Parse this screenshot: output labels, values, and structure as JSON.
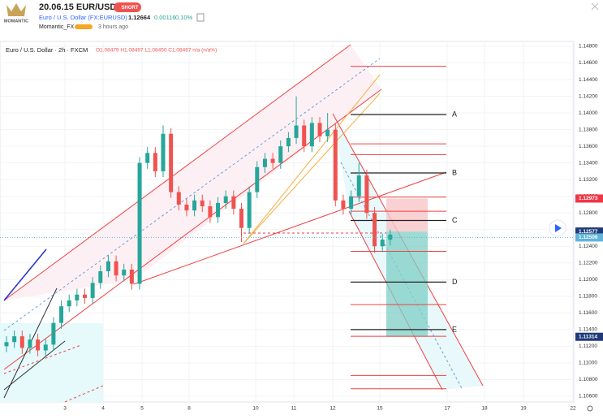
{
  "header": {
    "logo": "MOMANTIC",
    "title": "20.06.15 EUR/USD",
    "badge": "SHORT",
    "symbol": "Euro / U.S. Dollar (FX:EURUSD)",
    "price": "1.12664",
    "change": "0.00116",
    "change_pct": "0.10%",
    "author": "Momantic_FX",
    "time": "3 hours ago"
  },
  "chart": {
    "type": "candlestick",
    "title": "Euro / U.S. Dollar · 2h · FXCM",
    "ohlc": "O1.08479 H1.08497 L1.08450 C1.08467 n/a (n/a%)",
    "up_color": "#26a69a",
    "down_color": "#ef5350",
    "ylim": [
      1.106,
      1.148
    ],
    "yticks": [
      {
        "value": 1.148,
        "label": "1.14800"
      },
      {
        "value": 1.146,
        "label": "1.14600"
      },
      {
        "value": 1.144,
        "label": "1.14400"
      },
      {
        "value": 1.142,
        "label": "1.14200"
      },
      {
        "value": 1.14,
        "label": "1.14000"
      },
      {
        "value": 1.138,
        "label": "1.13800"
      },
      {
        "value": 1.136,
        "label": "1.13600"
      },
      {
        "value": 1.134,
        "label": "1.13400"
      },
      {
        "value": 1.132,
        "label": "1.13200"
      },
      {
        "value": 1.13,
        "label": "1.13000"
      },
      {
        "value": 1.128,
        "label": "1.12800"
      },
      {
        "value": 1.126,
        "label": "1.12600"
      },
      {
        "value": 1.124,
        "label": "1.12400"
      },
      {
        "value": 1.122,
        "label": "1.12200"
      },
      {
        "value": 1.12,
        "label": "1.12000"
      },
      {
        "value": 1.118,
        "label": "1.11800"
      },
      {
        "value": 1.116,
        "label": "1.11600"
      },
      {
        "value": 1.114,
        "label": "1.11400"
      },
      {
        "value": 1.112,
        "label": "1.11200"
      },
      {
        "value": 1.11,
        "label": "1.11000"
      },
      {
        "value": 1.108,
        "label": "1.10800"
      },
      {
        "value": 1.106,
        "label": "1.10600"
      }
    ],
    "x_labels": [
      "3",
      "4",
      "5",
      "8",
      "10",
      "11",
      "12",
      "15",
      "17",
      "18",
      "19",
      "22"
    ],
    "open": [
      1.112,
      1.1125,
      1.1132,
      1.1118,
      1.1128,
      1.1115,
      1.1122,
      1.1148,
      1.1168,
      1.1175,
      1.1182,
      1.1178,
      1.1196,
      1.121,
      1.1222,
      1.1205,
      1.1212,
      1.1195,
      1.134,
      1.1352,
      1.133,
      1.1375,
      1.1305,
      1.129,
      1.1283,
      1.1295,
      1.1288,
      1.1275,
      1.1292,
      1.13,
      1.1285,
      1.1262,
      1.1305,
      1.1335,
      1.1345,
      1.134,
      1.136,
      1.137,
      1.1385,
      1.136,
      1.1388,
      1.1372,
      1.138,
      1.1295,
      1.1285,
      1.13,
      1.1325,
      1.128,
      1.124,
      1.1248
    ],
    "high": [
      1.1132,
      1.1139,
      1.1139,
      1.1135,
      1.1135,
      1.1129,
      1.1155,
      1.1175,
      1.1182,
      1.1189,
      1.1189,
      1.1203,
      1.1217,
      1.1229,
      1.1229,
      1.1219,
      1.1219,
      1.1347,
      1.1359,
      1.1359,
      1.1385,
      1.1382,
      1.1312,
      1.1297,
      1.1302,
      1.1302,
      1.1295,
      1.1299,
      1.1307,
      1.1307,
      1.1292,
      1.1312,
      1.1342,
      1.1352,
      1.1352,
      1.1367,
      1.1377,
      1.142,
      1.1392,
      1.1395,
      1.1395,
      1.14,
      1.1387,
      1.1302,
      1.1307,
      1.134,
      1.1332,
      1.1287,
      1.1255,
      1.126
    ],
    "low": [
      1.1113,
      1.1118,
      1.1111,
      1.1111,
      1.1108,
      1.1108,
      1.1115,
      1.1141,
      1.1161,
      1.1168,
      1.1171,
      1.1171,
      1.1189,
      1.1203,
      1.1198,
      1.1198,
      1.1188,
      1.1188,
      1.1333,
      1.1323,
      1.1323,
      1.1298,
      1.1283,
      1.1276,
      1.1276,
      1.1281,
      1.1268,
      1.1268,
      1.1285,
      1.1278,
      1.1245,
      1.1255,
      1.1298,
      1.1328,
      1.1333,
      1.1333,
      1.1353,
      1.1363,
      1.1353,
      1.1353,
      1.1365,
      1.1365,
      1.1288,
      1.1278,
      1.1278,
      1.1293,
      1.1273,
      1.1232,
      1.1233,
      1.1241
    ],
    "close": [
      1.1125,
      1.1132,
      1.1118,
      1.1128,
      1.1115,
      1.1122,
      1.1148,
      1.1168,
      1.1175,
      1.1182,
      1.1178,
      1.1196,
      1.121,
      1.1222,
      1.1205,
      1.1212,
      1.1195,
      1.134,
      1.1352,
      1.133,
      1.1375,
      1.1305,
      1.129,
      1.1283,
      1.1295,
      1.1288,
      1.1275,
      1.1292,
      1.13,
      1.1285,
      1.1262,
      1.1305,
      1.1335,
      1.1345,
      1.134,
      1.136,
      1.137,
      1.1385,
      1.136,
      1.1388,
      1.1372,
      1.138,
      1.1295,
      1.1285,
      1.13,
      1.1325,
      1.128,
      1.124,
      1.1248,
      1.1254
    ],
    "levels": [
      {
        "label": "A",
        "value": 1.1398,
        "color": "#222222"
      },
      {
        "label": "B",
        "value": 1.1328,
        "color": "#222222"
      },
      {
        "label": "C",
        "value": 1.1271,
        "color": "#222222"
      },
      {
        "label": "D",
        "value": 1.1197,
        "color": "#222222"
      },
      {
        "label": "E",
        "value": 1.114,
        "color": "#222222"
      }
    ],
    "red_levels": [
      1.1456,
      1.1363,
      1.135,
      1.1299,
      1.1282,
      1.1234,
      1.117,
      1.1132,
      1.1085,
      1.1069
    ],
    "price_tags": [
      {
        "value": 1.12973,
        "color": "#f23645"
      },
      {
        "value": 1.12577,
        "color": "#1e3a78"
      },
      {
        "value": 1.12506,
        "color": "#5fb4d8"
      },
      {
        "value": 1.11314,
        "color": "#1e3a78"
      }
    ]
  }
}
